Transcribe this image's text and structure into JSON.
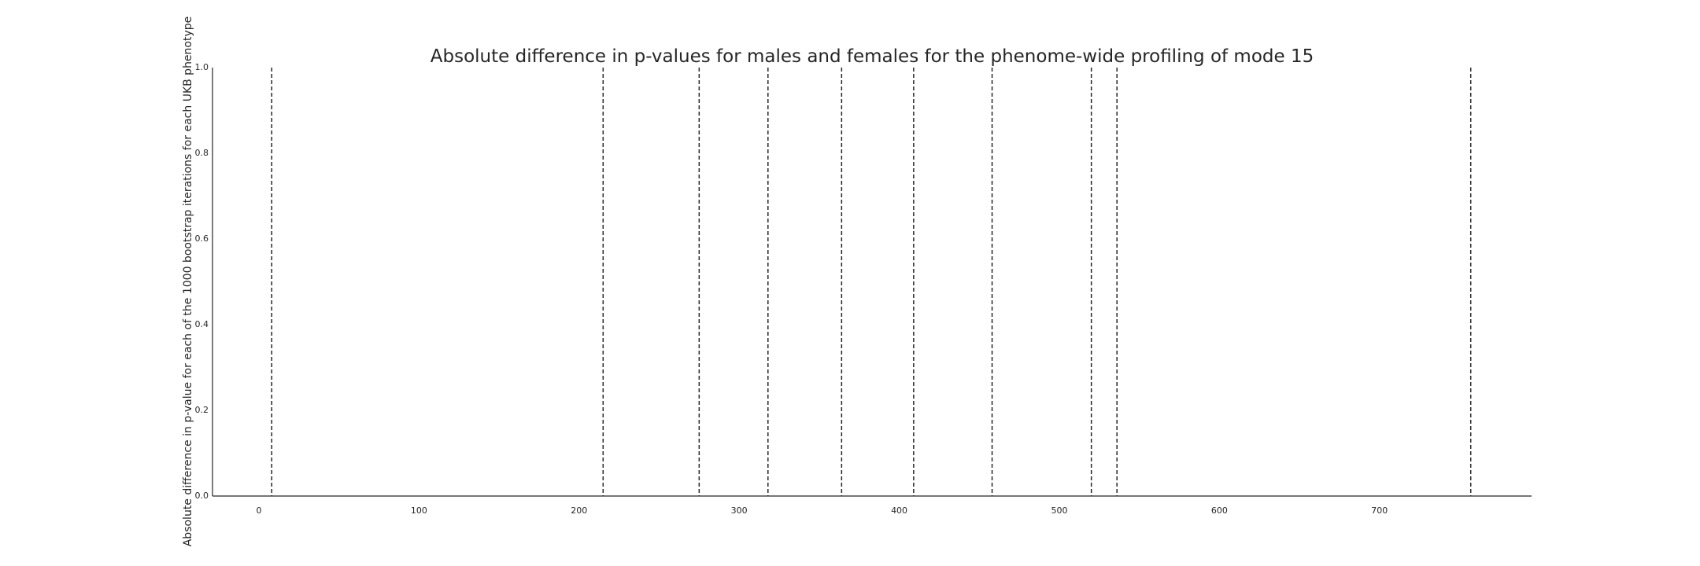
{
  "chart_data": {
    "type": "line",
    "title": "Absolute difference in p-values for males and females for the phenome-wide profiling of mode 15",
    "xlabel": "",
    "ylabel": "Absolute difference in p-value for each of the 1000 bootstrap iterations for each UKB phenotype",
    "xlim": [
      -29,
      795
    ],
    "ylim": [
      0,
      1
    ],
    "x_ticks": [
      0,
      100,
      200,
      300,
      400,
      500,
      600,
      700
    ],
    "y_ticks": [
      0.0,
      0.2,
      0.4,
      0.6,
      0.8,
      1.0
    ],
    "y_tick_labels": [
      "0.0",
      "0.2",
      "0.4",
      "0.6",
      "0.8",
      "1.0"
    ],
    "vertical_lines": [
      8,
      215,
      275,
      318,
      364,
      409,
      458,
      520,
      536,
      757
    ],
    "vertical_line_style": "dashed",
    "grid": false,
    "series": []
  }
}
